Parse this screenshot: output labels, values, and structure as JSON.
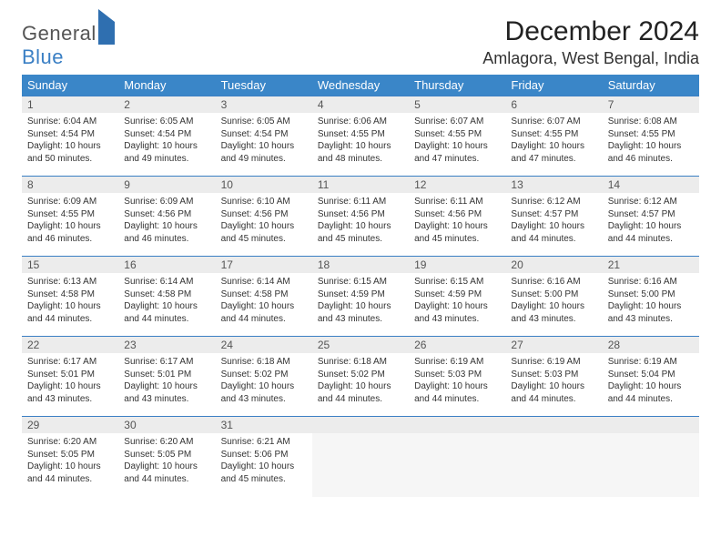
{
  "brand": {
    "part1": "General",
    "part2": "Blue"
  },
  "title": "December 2024",
  "location": "Amlagora, West Bengal, India",
  "headers": [
    "Sunday",
    "Monday",
    "Tuesday",
    "Wednesday",
    "Thursday",
    "Friday",
    "Saturday"
  ],
  "days": [
    {
      "n": 1,
      "sr": "6:04 AM",
      "ss": "4:54 PM",
      "dl": "10 hours and 50 minutes."
    },
    {
      "n": 2,
      "sr": "6:05 AM",
      "ss": "4:54 PM",
      "dl": "10 hours and 49 minutes."
    },
    {
      "n": 3,
      "sr": "6:05 AM",
      "ss": "4:54 PM",
      "dl": "10 hours and 49 minutes."
    },
    {
      "n": 4,
      "sr": "6:06 AM",
      "ss": "4:55 PM",
      "dl": "10 hours and 48 minutes."
    },
    {
      "n": 5,
      "sr": "6:07 AM",
      "ss": "4:55 PM",
      "dl": "10 hours and 47 minutes."
    },
    {
      "n": 6,
      "sr": "6:07 AM",
      "ss": "4:55 PM",
      "dl": "10 hours and 47 minutes."
    },
    {
      "n": 7,
      "sr": "6:08 AM",
      "ss": "4:55 PM",
      "dl": "10 hours and 46 minutes."
    },
    {
      "n": 8,
      "sr": "6:09 AM",
      "ss": "4:55 PM",
      "dl": "10 hours and 46 minutes."
    },
    {
      "n": 9,
      "sr": "6:09 AM",
      "ss": "4:56 PM",
      "dl": "10 hours and 46 minutes."
    },
    {
      "n": 10,
      "sr": "6:10 AM",
      "ss": "4:56 PM",
      "dl": "10 hours and 45 minutes."
    },
    {
      "n": 11,
      "sr": "6:11 AM",
      "ss": "4:56 PM",
      "dl": "10 hours and 45 minutes."
    },
    {
      "n": 12,
      "sr": "6:11 AM",
      "ss": "4:56 PM",
      "dl": "10 hours and 45 minutes."
    },
    {
      "n": 13,
      "sr": "6:12 AM",
      "ss": "4:57 PM",
      "dl": "10 hours and 44 minutes."
    },
    {
      "n": 14,
      "sr": "6:12 AM",
      "ss": "4:57 PM",
      "dl": "10 hours and 44 minutes."
    },
    {
      "n": 15,
      "sr": "6:13 AM",
      "ss": "4:58 PM",
      "dl": "10 hours and 44 minutes."
    },
    {
      "n": 16,
      "sr": "6:14 AM",
      "ss": "4:58 PM",
      "dl": "10 hours and 44 minutes."
    },
    {
      "n": 17,
      "sr": "6:14 AM",
      "ss": "4:58 PM",
      "dl": "10 hours and 44 minutes."
    },
    {
      "n": 18,
      "sr": "6:15 AM",
      "ss": "4:59 PM",
      "dl": "10 hours and 43 minutes."
    },
    {
      "n": 19,
      "sr": "6:15 AM",
      "ss": "4:59 PM",
      "dl": "10 hours and 43 minutes."
    },
    {
      "n": 20,
      "sr": "6:16 AM",
      "ss": "5:00 PM",
      "dl": "10 hours and 43 minutes."
    },
    {
      "n": 21,
      "sr": "6:16 AM",
      "ss": "5:00 PM",
      "dl": "10 hours and 43 minutes."
    },
    {
      "n": 22,
      "sr": "6:17 AM",
      "ss": "5:01 PM",
      "dl": "10 hours and 43 minutes."
    },
    {
      "n": 23,
      "sr": "6:17 AM",
      "ss": "5:01 PM",
      "dl": "10 hours and 43 minutes."
    },
    {
      "n": 24,
      "sr": "6:18 AM",
      "ss": "5:02 PM",
      "dl": "10 hours and 43 minutes."
    },
    {
      "n": 25,
      "sr": "6:18 AM",
      "ss": "5:02 PM",
      "dl": "10 hours and 44 minutes."
    },
    {
      "n": 26,
      "sr": "6:19 AM",
      "ss": "5:03 PM",
      "dl": "10 hours and 44 minutes."
    },
    {
      "n": 27,
      "sr": "6:19 AM",
      "ss": "5:03 PM",
      "dl": "10 hours and 44 minutes."
    },
    {
      "n": 28,
      "sr": "6:19 AM",
      "ss": "5:04 PM",
      "dl": "10 hours and 44 minutes."
    },
    {
      "n": 29,
      "sr": "6:20 AM",
      "ss": "5:05 PM",
      "dl": "10 hours and 44 minutes."
    },
    {
      "n": 30,
      "sr": "6:20 AM",
      "ss": "5:05 PM",
      "dl": "10 hours and 44 minutes."
    },
    {
      "n": 31,
      "sr": "6:21 AM",
      "ss": "5:06 PM",
      "dl": "10 hours and 45 minutes."
    }
  ],
  "labels": {
    "sunrise": "Sunrise:",
    "sunset": "Sunset:",
    "daylight": "Daylight:"
  },
  "colors": {
    "header_bg": "#3a86c8",
    "border": "#3a7fc4",
    "daynum_bg": "#ececec",
    "empty_bg": "#f6f6f6"
  }
}
